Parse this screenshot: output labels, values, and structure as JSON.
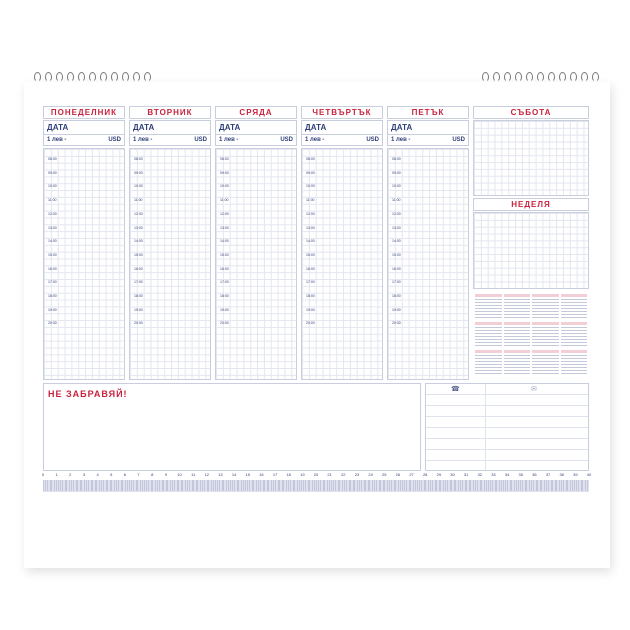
{
  "days": [
    "ПОНЕДЕЛНИК",
    "ВТОРНИК",
    "СРЯДА",
    "ЧЕТВЪРТЪК",
    "ПЕТЪК"
  ],
  "saturday": "СЪБОТА",
  "sunday": "НЕДЕЛЯ",
  "date_label": "ДАТА",
  "currency_left": "1 лев -",
  "currency_right": "USD",
  "times": [
    "08:00",
    "09:00",
    "10:00",
    "11:00",
    "12:00",
    "13:00",
    "14:00",
    "15:00",
    "16:00",
    "17:00",
    "18:00",
    "19:00",
    "20:00"
  ],
  "notes_title": "НЕ ЗАБРАВЯЙ!",
  "contact_icons": [
    "phone-icon",
    "envelope-icon"
  ],
  "ruler": {
    "min": 0,
    "max": 40,
    "unit": "cm"
  },
  "colors": {
    "accent": "#c8233f",
    "text": "#2f3f78",
    "line": "#c9cede"
  }
}
